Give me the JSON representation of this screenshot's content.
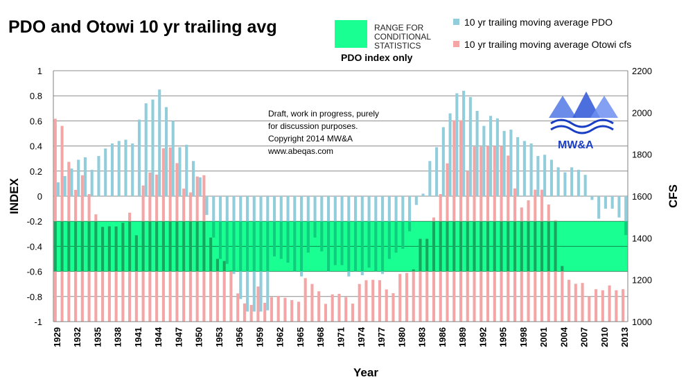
{
  "chart_data": {
    "type": "bar",
    "title": "PDO and Otowi 10 yr trailing avg",
    "xlabel": "Year",
    "ylabel_left": "INDEX",
    "ylabel_right": "CFS",
    "ylim_left": [
      -1,
      1
    ],
    "ylim_right": [
      1000,
      2200
    ],
    "yticks_left": [
      "1",
      "0.8",
      "0.6",
      "0.4",
      "0.2",
      "0",
      "-0.2",
      "-0.4",
      "-0.6",
      "-0.8",
      "-1"
    ],
    "yticks_right": [
      "2200",
      "2000",
      "1800",
      "1600",
      "1400",
      "1200",
      "1000"
    ],
    "grid": true,
    "years": [
      1929,
      1930,
      1931,
      1932,
      1933,
      1934,
      1935,
      1936,
      1937,
      1938,
      1939,
      1940,
      1941,
      1942,
      1943,
      1944,
      1945,
      1946,
      1947,
      1948,
      1949,
      1950,
      1951,
      1952,
      1953,
      1954,
      1955,
      1956,
      1957,
      1958,
      1959,
      1960,
      1961,
      1962,
      1963,
      1964,
      1965,
      1966,
      1967,
      1968,
      1969,
      1970,
      1971,
      1972,
      1973,
      1974,
      1975,
      1976,
      1977,
      1978,
      1979,
      1980,
      1981,
      1982,
      1983,
      1984,
      1985,
      1986,
      1987,
      1988,
      1989,
      1990,
      1991,
      1992,
      1993,
      1994,
      1995,
      1996,
      1997,
      1998,
      1999,
      2000,
      2001,
      2002,
      2003,
      2004,
      2005,
      2006,
      2007,
      2008,
      2009,
      2010,
      2011,
      2012,
      2013
    ],
    "x_tick_labels": [
      "1929",
      "1932",
      "1935",
      "1938",
      "1941",
      "1944",
      "1947",
      "1950",
      "1953",
      "1956",
      "1959",
      "1962",
      "1965",
      "1968",
      "1971",
      "1974",
      "1977",
      "1980",
      "1983",
      "1986",
      "1989",
      "1992",
      "1995",
      "1998",
      "2001",
      "2004",
      "2007",
      "2010",
      "2013"
    ],
    "series": [
      {
        "name": "10 yr trailing moving average PDO",
        "axis": "left",
        "color": "#92cddc",
        "values": [
          0.11,
          0.16,
          0.22,
          0.29,
          0.31,
          0.21,
          0.32,
          0.38,
          0.42,
          0.44,
          0.45,
          0.42,
          0.61,
          0.74,
          0.77,
          0.85,
          0.71,
          0.6,
          0.39,
          0.41,
          0.28,
          0.15,
          -0.15,
          -0.33,
          -0.5,
          -0.54,
          -0.62,
          -0.82,
          -0.92,
          -0.92,
          -0.92,
          -0.91,
          -0.48,
          -0.5,
          -0.53,
          -0.6,
          -0.64,
          -0.45,
          -0.33,
          -0.44,
          -0.6,
          -0.55,
          -0.55,
          -0.64,
          -0.6,
          -0.63,
          -0.57,
          -0.6,
          -0.62,
          -0.5,
          -0.45,
          -0.42,
          -0.28,
          -0.07,
          0.02,
          0.28,
          0.39,
          0.55,
          0.66,
          0.82,
          0.84,
          0.79,
          0.68,
          0.56,
          0.64,
          0.62,
          0.52,
          0.53,
          0.47,
          0.44,
          0.42,
          0.32,
          0.33,
          0.29,
          0.23,
          0.19,
          0.23,
          0.21,
          0.17,
          -0.03,
          -0.18,
          -0.1,
          -0.1,
          -0.17,
          -0.31
        ]
      },
      {
        "name": "10 yr trailing moving average Otowi cfs",
        "axis": "right",
        "color": "#f4a6a6",
        "values": [
          1970,
          1936,
          1764,
          1630,
          1700,
          1610,
          1513,
          1453,
          1456,
          1455,
          1473,
          1521,
          1413,
          1651,
          1713,
          1703,
          1829,
          1833,
          1758,
          1636,
          1618,
          1694,
          1700,
          1402,
          1300,
          1290,
          1244,
          1135,
          1087,
          1080,
          1168,
          1090,
          1117,
          1123,
          1114,
          1103,
          1095,
          1208,
          1180,
          1145,
          1085,
          1130,
          1133,
          1117,
          1086,
          1180,
          1198,
          1200,
          1198,
          1154,
          1136,
          1228,
          1233,
          1250,
          1396,
          1396,
          1498,
          1610,
          1757,
          1963,
          1963,
          1720,
          1837,
          1837,
          1840,
          1840,
          1840,
          1794,
          1637,
          1546,
          1580,
          1631,
          1631,
          1560,
          1485,
          1266,
          1200,
          1181,
          1185,
          1120,
          1155,
          1150,
          1173,
          1150,
          1155
        ]
      }
    ],
    "highlight_band": {
      "from": -0.6,
      "to": -0.2,
      "color": "#19ff91",
      "label": "RANGE FOR CONDITIONAL STATISTICS",
      "sublabel": "PDO index only"
    },
    "legend_placement": "top-right",
    "annotation": [
      "Draft, work in progress, purely",
      "for discussion purposes.",
      "Copyright 2014  MW&A",
      "www.abeqas.com"
    ],
    "logo_text": "MW&A"
  }
}
